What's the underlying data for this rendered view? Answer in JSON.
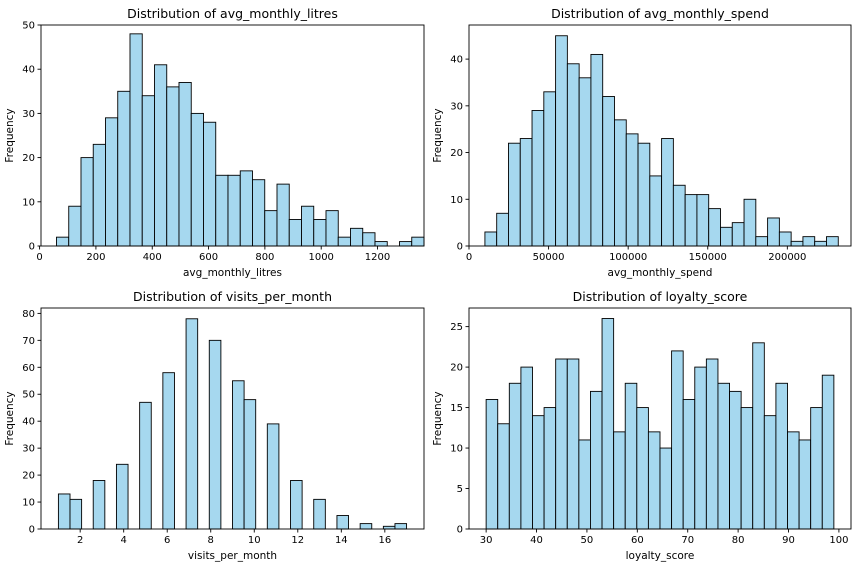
{
  "chart_data": [
    {
      "type": "bar",
      "title": "Distribution of avg_monthly_litres",
      "xlabel": "avg_monthly_litres",
      "ylabel": "Frequency",
      "xlim": [
        5,
        1365
      ],
      "ylim": [
        0,
        50
      ],
      "xticks": [
        0,
        200,
        400,
        600,
        800,
        1000,
        1200
      ],
      "yticks": [
        0,
        10,
        20,
        30,
        40,
        50
      ],
      "bin_start": 60,
      "bin_width": 43.5,
      "values": [
        2,
        9,
        20,
        23,
        29,
        35,
        48,
        34,
        41,
        36,
        37,
        30,
        28,
        16,
        16,
        17,
        15,
        8,
        14,
        6,
        9,
        6,
        8,
        2,
        4,
        3,
        1,
        0,
        1,
        2
      ]
    },
    {
      "type": "bar",
      "title": "Distribution of avg_monthly_spend",
      "xlabel": "avg_monthly_spend",
      "ylabel": "Frequency",
      "xlim": [
        0,
        240000
      ],
      "ylim": [
        0,
        47.3
      ],
      "xticks": [
        0,
        50000,
        100000,
        150000,
        200000
      ],
      "yticks": [
        0,
        10,
        20,
        30,
        40
      ],
      "bin_start": 10000,
      "bin_width": 7400,
      "values": [
        3,
        7,
        22,
        23,
        29,
        33,
        45,
        39,
        36,
        41,
        32,
        27,
        24,
        22,
        15,
        23,
        13,
        11,
        11,
        8,
        4,
        5,
        10,
        2,
        6,
        3,
        1,
        2,
        1,
        2
      ]
    },
    {
      "type": "bar",
      "title": "Distribution of visits_per_month",
      "xlabel": "visits_per_month",
      "ylabel": "Frequency",
      "xlim": [
        0.2,
        17.8
      ],
      "ylim": [
        0,
        82
      ],
      "xticks": [
        2,
        4,
        6,
        8,
        10,
        12,
        14,
        16
      ],
      "yticks": [
        0,
        10,
        20,
        30,
        40,
        50,
        60,
        70,
        80
      ],
      "bin_start": 1,
      "bin_width": 0.5333,
      "values": [
        13,
        11,
        0,
        18,
        0,
        24,
        0,
        47,
        0,
        58,
        0,
        78,
        0,
        70,
        0,
        55,
        48,
        0,
        39,
        0,
        18,
        0,
        11,
        0,
        5,
        0,
        2,
        0,
        1,
        2
      ]
    },
    {
      "type": "bar",
      "title": "Distribution of loyalty_score",
      "xlabel": "loyalty_score",
      "ylabel": "Frequency",
      "xlim": [
        26.6,
        102.4
      ],
      "ylim": [
        0,
        27.3
      ],
      "xticks": [
        30,
        40,
        50,
        60,
        70,
        80,
        90,
        100
      ],
      "yticks": [
        0,
        5,
        10,
        15,
        20,
        25
      ],
      "bin_start": 30,
      "bin_width": 2.3,
      "values": [
        16,
        13,
        18,
        20,
        14,
        15,
        21,
        21,
        11,
        17,
        26,
        12,
        18,
        15,
        12,
        10,
        22,
        16,
        20,
        21,
        18,
        17,
        15,
        23,
        14,
        18,
        12,
        11,
        15,
        19
      ]
    }
  ]
}
